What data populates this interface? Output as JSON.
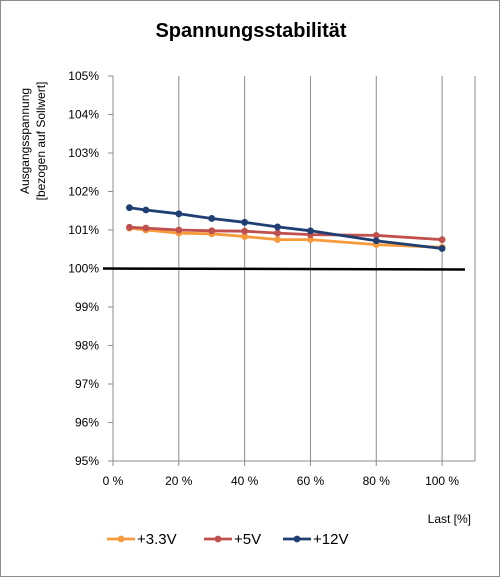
{
  "chart_data": {
    "type": "line",
    "title": "Spannungsstabilität",
    "xlabel": "Last [%]",
    "ylabel_lines": [
      "Ausgangsspannung",
      "[bezogen auf Sollwert]"
    ],
    "xlim": [
      0,
      110
    ],
    "ylim": [
      95,
      105
    ],
    "x_ticks": [
      0,
      20,
      40,
      60,
      80,
      100
    ],
    "x_tick_labels": [
      "0 %",
      "20 %",
      "40 %",
      "60 %",
      "80 %",
      "100 %"
    ],
    "y_ticks": [
      95,
      96,
      97,
      98,
      99,
      100,
      101,
      102,
      103,
      104,
      105
    ],
    "y_tick_labels": [
      "95%",
      "96%",
      "97%",
      "98%",
      "99%",
      "100%",
      "101%",
      "102%",
      "103%",
      "104%",
      "105%"
    ],
    "grid": "vertical",
    "legend_position": "bottom",
    "reference_line": {
      "y": 100,
      "color": "#000000"
    },
    "series": [
      {
        "name": "+3.3V",
        "color": "#f79a3c",
        "x": [
          5,
          10,
          20,
          30,
          40,
          50,
          60,
          80,
          100
        ],
        "values": [
          101.05,
          101.0,
          100.92,
          100.9,
          100.83,
          100.75,
          100.75,
          100.62,
          100.55
        ]
      },
      {
        "name": "+5V",
        "color": "#c0504d",
        "x": [
          5,
          10,
          20,
          30,
          40,
          50,
          60,
          80,
          100
        ],
        "values": [
          101.07,
          101.05,
          101.0,
          100.98,
          100.97,
          100.92,
          100.88,
          100.86,
          100.75
        ]
      },
      {
        "name": "+12V",
        "color": "#1f3f73",
        "x": [
          5,
          10,
          20,
          30,
          40,
          50,
          60,
          80,
          100
        ],
        "values": [
          101.58,
          101.52,
          101.42,
          101.3,
          101.2,
          101.08,
          100.98,
          100.72,
          100.52
        ]
      }
    ]
  }
}
